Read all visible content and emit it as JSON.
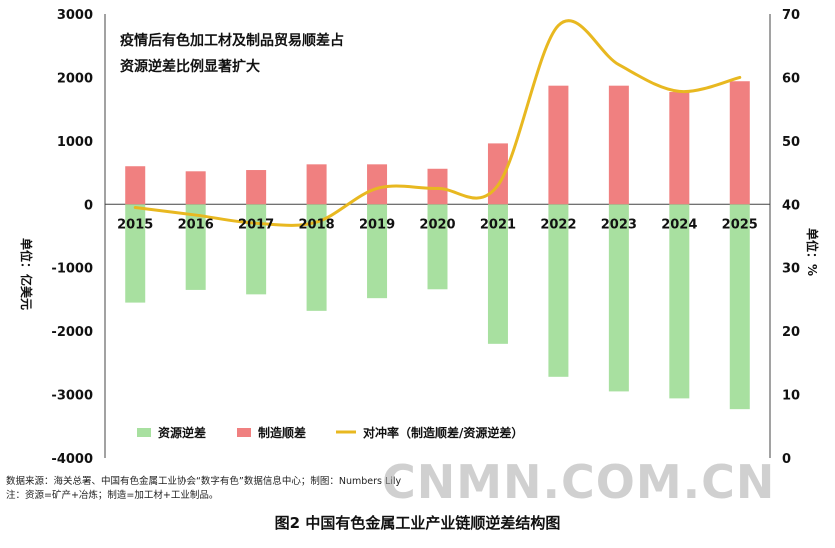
{
  "chart_data": {
    "type": "bar",
    "title_lines": [
      "疫情后有色加工材及制品贸易顺差占",
      "资源逆差比例显著扩大"
    ],
    "categories": [
      "2015",
      "2016",
      "2017",
      "2018",
      "2019",
      "2020",
      "2021",
      "2022",
      "2023",
      "2024",
      "2025"
    ],
    "series": [
      {
        "name": "资源逆差",
        "type": "bar",
        "axis": "left",
        "color": "#a8e0a0",
        "values": [
          -1550,
          -1350,
          -1420,
          -1680,
          -1480,
          -1340,
          -2200,
          -2720,
          -2950,
          -3060,
          -3230
        ]
      },
      {
        "name": "制造顺差",
        "type": "bar",
        "axis": "left",
        "color": "#f08080",
        "values": [
          600,
          520,
          540,
          630,
          630,
          560,
          960,
          1870,
          1870,
          1770,
          1940
        ]
      },
      {
        "name": "对冲率（制造顺差/资源逆差）",
        "type": "line",
        "axis": "right",
        "color": "#e8b820",
        "values": [
          39.5,
          38.3,
          37,
          37.2,
          42.5,
          42.5,
          43,
          68.2,
          62,
          57.8,
          60
        ]
      }
    ],
    "ylabel": "单位：亿美元",
    "y2label": "单位：%",
    "ylim": [
      -4000,
      3000
    ],
    "y2lim": [
      0,
      70
    ],
    "yticks": [
      3000,
      2000,
      1000,
      0,
      -1000,
      -2000,
      -3000,
      -4000
    ],
    "y2ticks": [
      70,
      60,
      50,
      40,
      30,
      20,
      10,
      0
    ],
    "grid": false,
    "legend_position": "bottom"
  },
  "notes": {
    "source": "数据来源：海关总署、中国有色金属工业协会“数字有色”数据信息中心；制图：Numbers Lily",
    "definition": "注：资源=矿产+冶炼；制造=加工材+工业制品。"
  },
  "caption": "图2  中国有色金属工业产业链顺逆差结构图",
  "watermark": "CNMN.COM.CN"
}
